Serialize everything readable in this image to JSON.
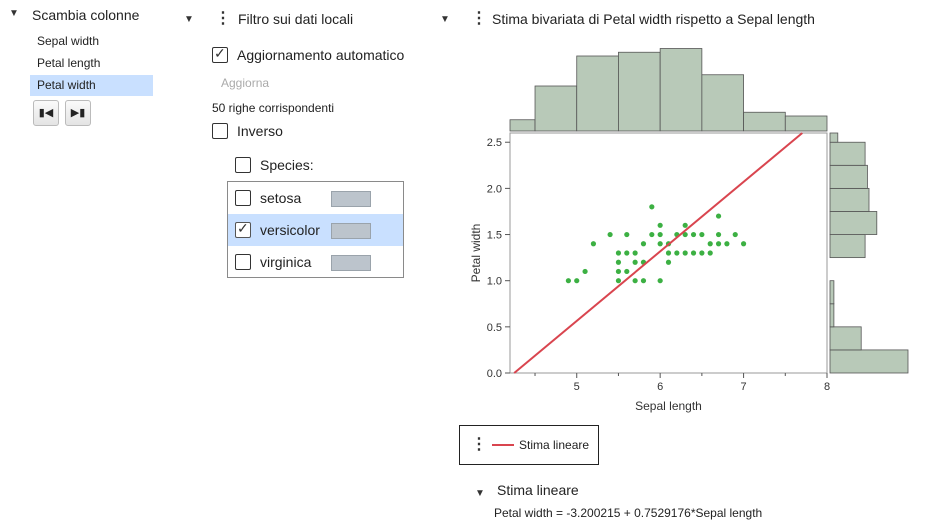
{
  "swap_panel": {
    "title": "Scambia colonne",
    "items": [
      "Sepal width",
      "Petal length",
      "Petal width"
    ],
    "selected_index": 2,
    "first_button": "first-icon",
    "last_button": "last-icon"
  },
  "filter_panel": {
    "title": "Filtro sui dati locali",
    "auto_update_label": "Aggiornamento automatico",
    "auto_update_checked": true,
    "update_button": "Aggiorna",
    "matching_rows": "50 righe corrispondenti",
    "inverse_label": "Inverso",
    "inverse_checked": false,
    "species_label": "Species:",
    "species": [
      {
        "label": "setosa",
        "checked": false
      },
      {
        "label": "versicolor",
        "checked": true
      },
      {
        "label": "virginica",
        "checked": false
      }
    ]
  },
  "chart_panel": {
    "title": "Stima bivariata di Petal width rispetto a Sepal length",
    "legend_label": "Stima lineare",
    "fit_section_title": "Stima lineare",
    "fit_equation": "Petal width = -3.200215 + 0.7529176*Sepal length"
  },
  "colors": {
    "histogram_fill": "#b8c9b8",
    "points": "#3cb043",
    "fit_line": "#d9454f",
    "selection": "#c9e0ff"
  },
  "chart_data": {
    "type": "scatter",
    "xlabel": "Sepal length",
    "ylabel": "Petal width",
    "xlim": [
      4.2,
      8.0
    ],
    "ylim": [
      0.0,
      2.6
    ],
    "x_ticks": [
      "5",
      "6",
      "7",
      "8"
    ],
    "y_ticks": [
      "0.0",
      "0.5",
      "1.0",
      "1.5",
      "2.0",
      "2.5"
    ],
    "points": [
      [
        4.9,
        1.0
      ],
      [
        5.0,
        1.0
      ],
      [
        5.1,
        1.1
      ],
      [
        5.2,
        1.4
      ],
      [
        5.4,
        1.5
      ],
      [
        5.5,
        1.3
      ],
      [
        5.5,
        1.2
      ],
      [
        5.5,
        1.1
      ],
      [
        5.5,
        1.0
      ],
      [
        5.6,
        1.3
      ],
      [
        5.6,
        1.1
      ],
      [
        5.6,
        1.5
      ],
      [
        5.7,
        1.3
      ],
      [
        5.7,
        1.2
      ],
      [
        5.7,
        1.0
      ],
      [
        5.8,
        1.2
      ],
      [
        5.8,
        1.0
      ],
      [
        5.8,
        1.4
      ],
      [
        5.9,
        1.5
      ],
      [
        5.9,
        1.8
      ],
      [
        6.0,
        1.0
      ],
      [
        6.0,
        1.4
      ],
      [
        6.0,
        1.5
      ],
      [
        6.0,
        1.6
      ],
      [
        6.1,
        1.2
      ],
      [
        6.1,
        1.4
      ],
      [
        6.1,
        1.3
      ],
      [
        6.2,
        1.5
      ],
      [
        6.2,
        1.3
      ],
      [
        6.3,
        1.6
      ],
      [
        6.3,
        1.5
      ],
      [
        6.3,
        1.3
      ],
      [
        6.4,
        1.5
      ],
      [
        6.4,
        1.3
      ],
      [
        6.5,
        1.5
      ],
      [
        6.5,
        1.3
      ],
      [
        6.6,
        1.4
      ],
      [
        6.6,
        1.3
      ],
      [
        6.7,
        1.4
      ],
      [
        6.7,
        1.5
      ],
      [
        6.7,
        1.7
      ],
      [
        6.8,
        1.4
      ],
      [
        6.9,
        1.5
      ],
      [
        7.0,
        1.4
      ]
    ],
    "fit": {
      "intercept": -3.200215,
      "slope": 0.7529176
    },
    "x_histogram": {
      "bins": [
        [
          4.0,
          4.5
        ],
        [
          4.5,
          5.0
        ],
        [
          5.0,
          5.5
        ],
        [
          5.5,
          6.0
        ],
        [
          6.0,
          6.5
        ],
        [
          6.5,
          7.0
        ],
        [
          7.0,
          7.5
        ],
        [
          7.5,
          8.0
        ]
      ],
      "heights": [
        0.15,
        0.6,
        1.0,
        1.05,
        1.1,
        0.75,
        0.25,
        0.2
      ]
    },
    "y_histogram": {
      "bins": [
        [
          0.0,
          0.25
        ],
        [
          0.25,
          0.5
        ],
        [
          0.5,
          0.75
        ],
        [
          0.75,
          1.0
        ],
        [
          1.25,
          1.5
        ],
        [
          1.5,
          1.75
        ],
        [
          1.75,
          2.0
        ],
        [
          2.0,
          2.25
        ],
        [
          2.25,
          2.5
        ],
        [
          2.5,
          2.6
        ]
      ],
      "lengths": [
        1.0,
        0.4,
        0.05,
        0.05,
        0.45,
        0.6,
        0.5,
        0.48,
        0.45,
        0.1
      ]
    }
  }
}
